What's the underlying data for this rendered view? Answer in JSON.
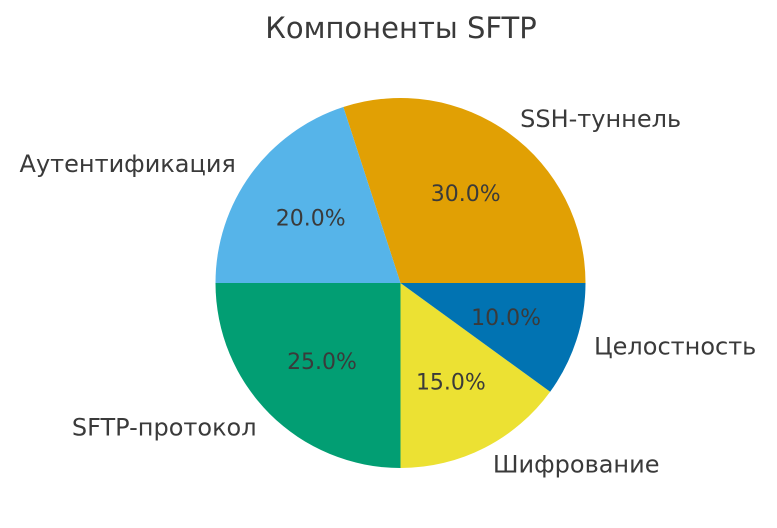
{
  "chart_data": {
    "type": "pie",
    "title": "Компоненты SFTP",
    "slices": [
      {
        "label": "SSH-туннель",
        "value": 30.0,
        "pct_label": "30.0%",
        "color": "#e1a004"
      },
      {
        "label": "Аутентификация",
        "value": 20.0,
        "pct_label": "20.0%",
        "color": "#56b4e9"
      },
      {
        "label": "SFTP-протокол",
        "value": 25.0,
        "pct_label": "25.0%",
        "color": "#029e73"
      },
      {
        "label": "Шифрование",
        "value": 15.0,
        "pct_label": "15.0%",
        "color": "#ece133"
      },
      {
        "label": "Целостность",
        "value": 10.0,
        "pct_label": "10.0%",
        "color": "#0173b2"
      }
    ],
    "start_angle_deg": 0,
    "direction": "counterclockwise",
    "label_distance": 1.1,
    "pct_distance": 0.6,
    "text_color": "#3a3a3a",
    "background": "#ffffff",
    "legend": "none"
  }
}
